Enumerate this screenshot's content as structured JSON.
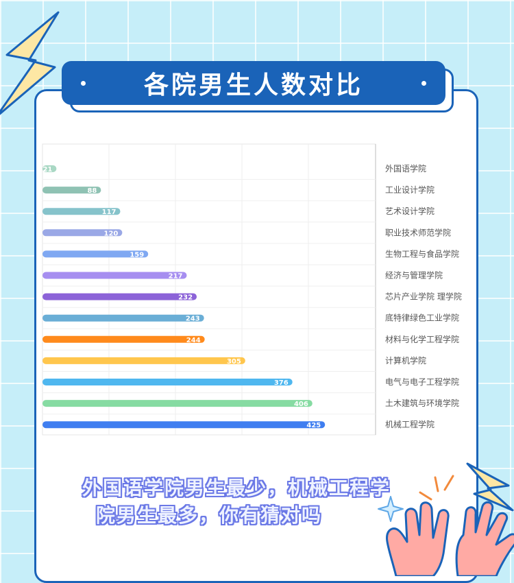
{
  "title": "各院男生人数对比",
  "caption": {
    "line1": "外国语学院男生最少，机械工程学",
    "line2": "院男生最多，你有猜对吗"
  },
  "colors": {
    "background": "#c6eef9",
    "accent": "#1a63b8"
  },
  "chart_data": {
    "type": "bar",
    "orientation": "horizontal",
    "title": "",
    "xlabel": "",
    "ylabel": "",
    "xlim": [
      0,
      500
    ],
    "grid": true,
    "category_axis_position": "right",
    "categories": [
      "外国语学院",
      "工业设计学院",
      "艺术设计学院",
      "职业技术师范学院",
      "生物工程与食品学院",
      "经济与管理学院",
      "芯片产业学院 理学院",
      "底特律绿色工业学院",
      "材料与化学工程学院",
      "计算机学院",
      "电气与电子工程学院",
      "土木建筑与环境学院",
      "机械工程学院"
    ],
    "values": [
      21,
      88,
      117,
      120,
      159,
      217,
      232,
      243,
      244,
      305,
      376,
      406,
      425
    ],
    "bar_colors": [
      "#a9d8c4",
      "#8fc2b3",
      "#86c3cb",
      "#9aa8e6",
      "#7fa8f2",
      "#a68ef0",
      "#8c63d8",
      "#6aaed6",
      "#ff8a1c",
      "#ffc64d",
      "#4fb7ef",
      "#86dba2",
      "#3f7ef0"
    ]
  }
}
